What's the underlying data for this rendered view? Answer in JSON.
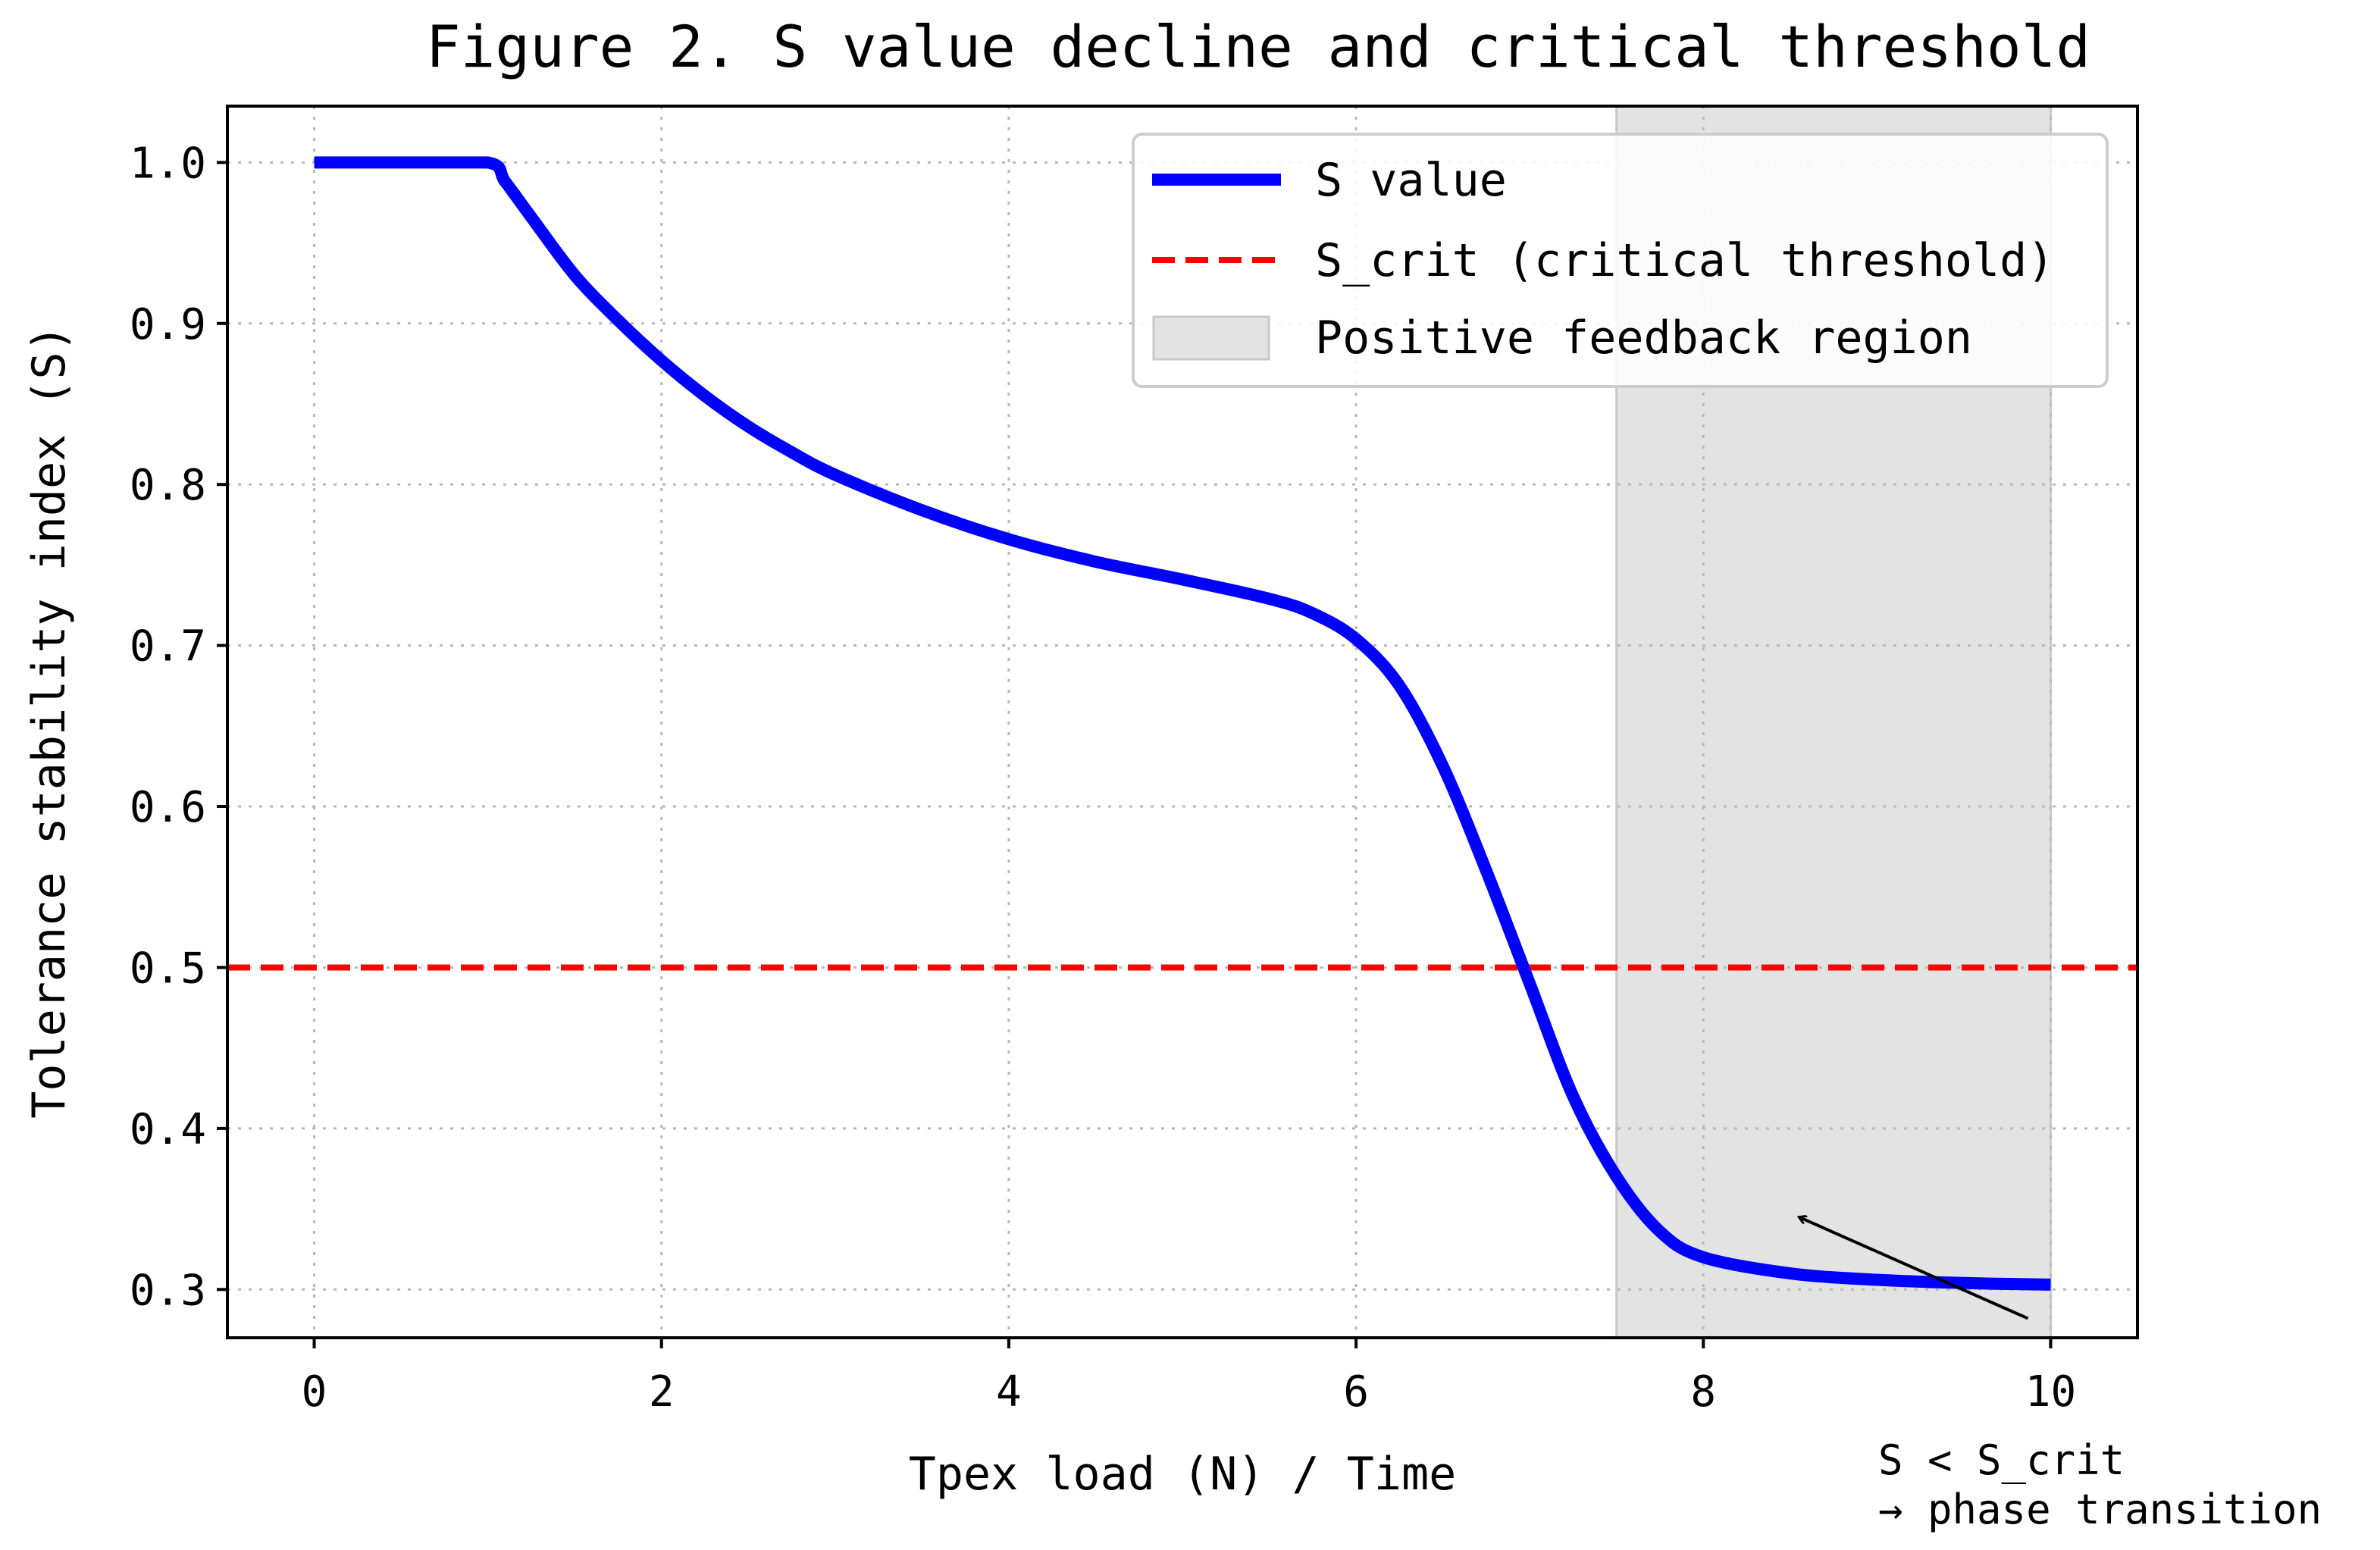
{
  "chart_data": {
    "type": "line",
    "title": "Figure 2. S value decline and critical threshold",
    "xlabel": "Tpex load (N) / Time",
    "ylabel": "Tolerance stability index (S)",
    "xlim": [
      -0.5,
      10.5
    ],
    "ylim": [
      0.27,
      1.035
    ],
    "xticks": [
      "0",
      "2",
      "4",
      "6",
      "8",
      "10"
    ],
    "xtick_values": [
      0,
      2,
      4,
      6,
      8,
      10
    ],
    "yticks": [
      "1.0",
      "0.9",
      "0.8",
      "0.7",
      "0.6",
      "0.5",
      "0.4",
      "0.3"
    ],
    "ytick_values": [
      1.0,
      0.9,
      0.8,
      0.7,
      0.6,
      0.5,
      0.4,
      0.3
    ],
    "grid": true,
    "legend_placement": "top-right",
    "series": [
      {
        "name": "S value",
        "color": "#0000ff",
        "style": "solid",
        "x": [
          0,
          0.5,
          1.0,
          1.1,
          1.25,
          1.5,
          1.75,
          2.0,
          2.25,
          2.5,
          2.75,
          3.0,
          3.5,
          4.0,
          4.5,
          5.0,
          5.5,
          5.75,
          6.0,
          6.25,
          6.5,
          6.75,
          7.0,
          7.25,
          7.5,
          7.75,
          8.0,
          8.5,
          9.0,
          9.5,
          10.0
        ],
        "y": [
          1.0,
          1.0,
          1.0,
          0.988,
          0.966,
          0.93,
          0.902,
          0.877,
          0.855,
          0.836,
          0.82,
          0.806,
          0.784,
          0.766,
          0.752,
          0.741,
          0.729,
          0.72,
          0.704,
          0.675,
          0.625,
          0.56,
          0.49,
          0.42,
          0.37,
          0.336,
          0.32,
          0.31,
          0.306,
          0.304,
          0.303
        ]
      },
      {
        "name": "S_crit (critical threshold)",
        "color": "#ff0000",
        "style": "dashed",
        "x": [
          -0.5,
          10.5
        ],
        "y": [
          0.5,
          0.5
        ]
      }
    ],
    "shaded_regions": [
      {
        "name": "Positive feedback region",
        "x_start": 7.5,
        "x_end": 10.0,
        "color": "#e3e3e3"
      }
    ],
    "annotations": [
      {
        "text_line1": "S < S_crit",
        "text_line2": "→ phase transition",
        "arrow_to": [
          8.55,
          0.345
        ],
        "arrow_from": [
          10.0,
          0.395
        ]
      }
    ]
  }
}
